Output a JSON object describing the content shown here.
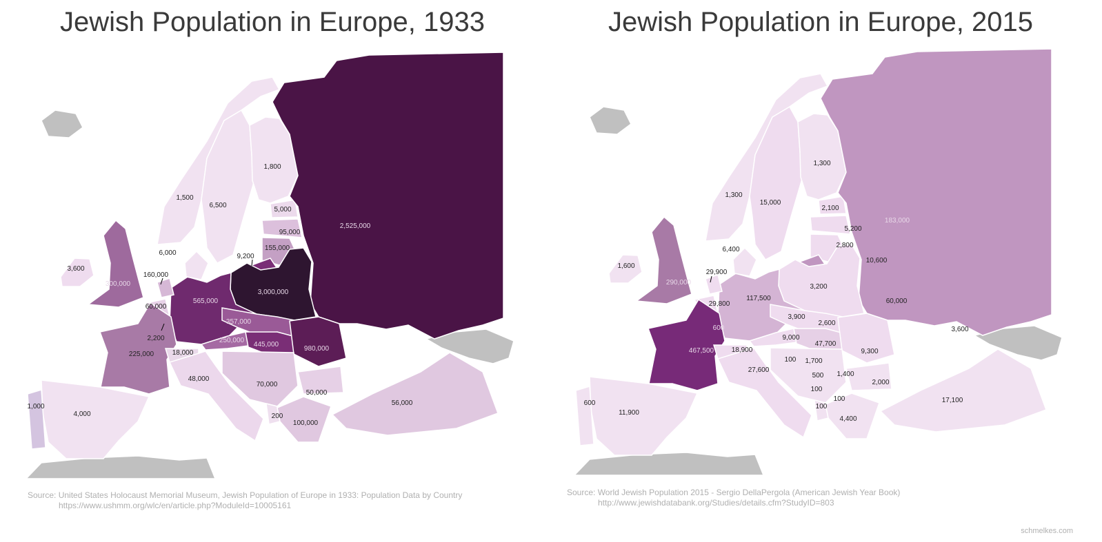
{
  "maps": [
    {
      "title": "Jewish Population in Europe, 1933",
      "colors": {
        "russia": "#4a1446",
        "poland": "#2e1530",
        "germany": "#6f2a6e",
        "czech": "#9a5a97",
        "austria": "#a56aa3",
        "hungary": "#7a2e76",
        "romania": "#5c1d56",
        "lithuania": "#c4a0c4",
        "latvia": "#dcc0dc",
        "estonia": "#ecdaec",
        "prussia": "#7a2e76",
        "finland": "#f1e2f1",
        "sweden": "#f1e2f1",
        "norway": "#f1e2f1",
        "denmark": "#f1e2f1",
        "uk": "#9e6a9d",
        "ireland": "#efdcef",
        "netherlands": "#d6b8d6",
        "belgium": "#e8d2e8",
        "france": "#a87aa6",
        "switzerland": "#eadaea",
        "italy": "#ecd8ec",
        "yugoslavia": "#e0c8e0",
        "bulgaria": "#e6d0e6",
        "greece": "#e0c8e0",
        "albania": "#efe0ef",
        "turkey": "#e0c8e0",
        "spain": "#f1e2f1",
        "portugal": "#d4c4e0",
        "iceland": "#c0c0c0",
        "africa": "#c0c0c0",
        "caucasus": "#c0c0c0"
      },
      "labels": [
        "1,800",
        "1,500",
        "6,500",
        "5,000",
        "95,000",
        "2,525,000",
        "155,000",
        "6,000",
        "9,200",
        "3,600",
        "160,000",
        "300,000",
        "565,000",
        "3,000,000",
        "60,000",
        "357,000",
        "2,200",
        "250,000",
        "445,000",
        "980,000",
        "225,000",
        "18,000",
        "48,000",
        "70,000",
        "50,000",
        "56,000",
        "1,000",
        "4,000",
        "200",
        "100,000"
      ],
      "source": "Source: United States Holocaust Memorial Museum, Jewish Population of Europe in 1933: Population Data by Country",
      "source_url": "https://www.ushmm.org/wlc/en/article.php?ModuleId=10005161"
    },
    {
      "title": "Jewish Population in Europe, 2015",
      "colors": {
        "russia": "#c096c0",
        "poland": "#efdcef",
        "germany": "#d4b4d4",
        "czech": "#efdcef",
        "austria": "#efdcef",
        "hungary": "#e6d0e6",
        "romania": "#efdcef",
        "lithuania": "#efdcef",
        "latvia": "#efdcef",
        "estonia": "#efdcef",
        "prussia": "#c096c0",
        "finland": "#f1e2f1",
        "sweden": "#efdcef",
        "norway": "#f1e2f1",
        "denmark": "#f1e2f1",
        "uk": "#a87aa6",
        "ireland": "#f1e2f1",
        "netherlands": "#efdcef",
        "belgium": "#efdcef",
        "france": "#772a78",
        "switzerland": "#efdcef",
        "italy": "#efdcef",
        "yugoslavia": "#f1e2f1",
        "bulgaria": "#f1e2f1",
        "greece": "#f1e2f1",
        "albania": "#f1e2f1",
        "turkey": "#f1e2f1",
        "spain": "#f1e2f1",
        "portugal": "#f1e2f1",
        "iceland": "#c0c0c0",
        "africa": "#c0c0c0",
        "caucasus": "#c0c0c0"
      },
      "labels": [
        "1,300",
        "1,300",
        "15,000",
        "2,100",
        "183,000",
        "5,200",
        "2,800",
        "6,400",
        "10,600",
        "1,600",
        "29,900",
        "290,000",
        "3,200",
        "117,500",
        "29,800",
        "60,000",
        "3,900",
        "600",
        "2,600",
        "3,600",
        "9,000",
        "47,700",
        "467,500",
        "18,900",
        "9,300",
        "100",
        "1,700",
        "27,600",
        "500",
        "1,400",
        "2,000",
        "100",
        "100",
        "100",
        "600",
        "11,900",
        "4,400",
        "17,100"
      ],
      "source": "Source: World Jewish Population 2015 - Sergio DellaPergola (American Jewish Year Book)",
      "source_url": "http://www.jewishdatabank.org/Studies/details.cfm?StudyID=803"
    }
  ],
  "credit": "schmelkes.com"
}
